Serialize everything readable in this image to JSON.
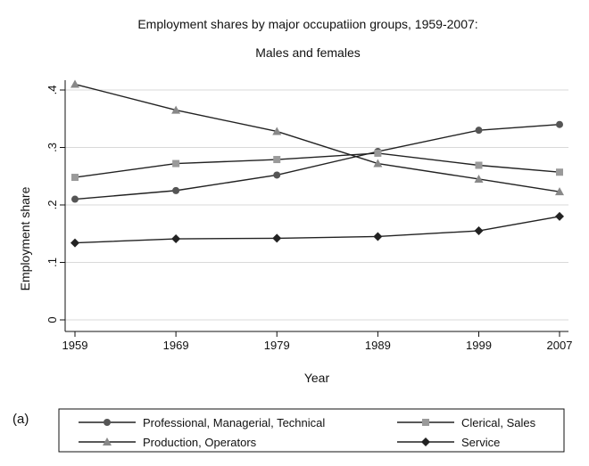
{
  "chart_data": {
    "type": "line",
    "title": "Employment shares by major occupatiion groups, 1959-2007:",
    "subtitle": "Males and females",
    "xlabel": "Year",
    "ylabel": "Employment share",
    "x": [
      1959,
      1969,
      1979,
      1989,
      1999,
      2007
    ],
    "xticks": [
      "1959",
      "1969",
      "1979",
      "1989",
      "1999",
      "2007"
    ],
    "yticks": [
      "0",
      ".1",
      ".2",
      ".3",
      ".4"
    ],
    "ylim": [
      0,
      0.41
    ],
    "grid": true,
    "legend_position": "bottom",
    "panel_label": "(a)",
    "series": [
      {
        "name": "Professional, Managerial, Technical",
        "marker": "circle",
        "color": "#555555",
        "values": [
          0.21,
          0.225,
          0.252,
          0.293,
          0.33,
          0.34
        ]
      },
      {
        "name": "Clerical, Sales",
        "marker": "square",
        "color": "#9a9a9a",
        "values": [
          0.248,
          0.272,
          0.279,
          0.29,
          0.269,
          0.257
        ]
      },
      {
        "name": "Production, Operators",
        "marker": "triangle",
        "color": "#888888",
        "values": [
          0.41,
          0.365,
          0.328,
          0.272,
          0.245,
          0.223
        ]
      },
      {
        "name": "Service",
        "marker": "diamond",
        "color": "#222222",
        "values": [
          0.134,
          0.141,
          0.142,
          0.145,
          0.155,
          0.18
        ]
      }
    ]
  }
}
